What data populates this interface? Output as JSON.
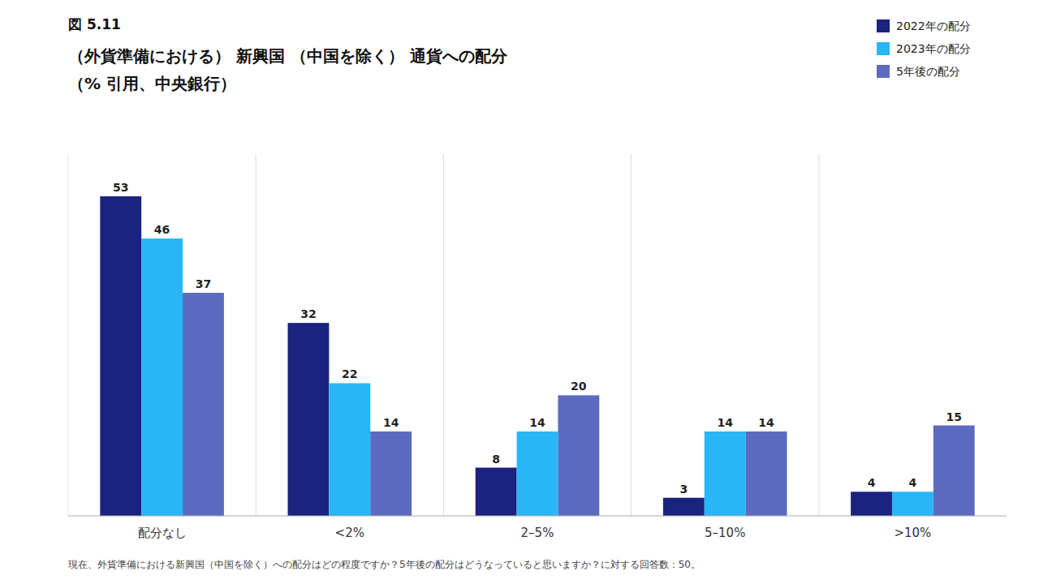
{
  "chart_data": {
    "type": "bar",
    "title": "図 5.11",
    "subtitle": [
      "（外貨準備における） 新興国 （中国を除く） 通貨への配分",
      "（% 引用、中央銀行）"
    ],
    "annotations": [
      "現在、外貨準備における新興国（中国を除く）への配分はどの程度ですか？5年後の配分はどうなっていると思いますか？に対する回答数：50。"
    ],
    "categories": [
      "配分なし",
      "<2%",
      "2–5%",
      "5–10%",
      ">10%"
    ],
    "series": [
      {
        "name": "2022年の配分",
        "color": "#1a237e",
        "values": [
          53,
          32,
          8,
          3,
          4
        ]
      },
      {
        "name": "2023年の配分",
        "color": "#29b6f6",
        "values": [
          46,
          22,
          14,
          14,
          4
        ]
      },
      {
        "name": "5年後の配分",
        "color": "#5c6bc0",
        "values": [
          37,
          14,
          20,
          14,
          15
        ]
      }
    ],
    "ylim": [
      0,
      60
    ],
    "grid": false,
    "legend": "upper right",
    "data_labels": true,
    "tick_labels": "x"
  }
}
